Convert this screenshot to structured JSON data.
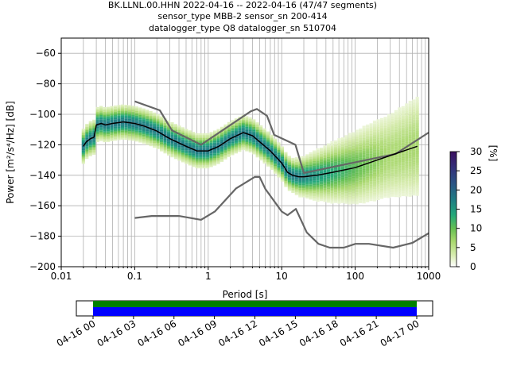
{
  "title_lines": [
    "BK.LLNL.00.HHN   2022-04-16 -- 2022-04-16  (47/47 segments)",
    "sensor_type MBB-2 sensor_sn 200-414",
    "datalogger_type Q8 datalogger_sn 510704"
  ],
  "colors": {
    "noise_model": "#666666",
    "mode_line": "#000000",
    "coverage_data": "#008000",
    "coverage_gaps": "#0000ff"
  },
  "chart_data": [
    {
      "type": "heatmap",
      "title": "BK.LLNL.00.HHN   2022-04-16 -- 2022-04-16  (47/47 segments)",
      "xlabel": "Period [s]",
      "ylabel": "Power [m²/s⁴/Hz] [dB]",
      "xscale": "log",
      "xlim": [
        0.01,
        1000
      ],
      "ylim": [
        -200,
        -50
      ],
      "xticks": [
        "0.01",
        "0.1",
        "1",
        "10",
        "100",
        "1000"
      ],
      "yticks": [
        "−200",
        "−180",
        "−160",
        "−140",
        "−120",
        "−100",
        "−80",
        "−60"
      ],
      "grid": true,
      "colorbar": {
        "label": "[%]",
        "range": [
          0,
          30
        ],
        "ticks": [
          "0",
          "5",
          "10",
          "15",
          "20",
          "25",
          "30"
        ],
        "colormap": "pqlx"
      },
      "series": [
        {
          "name": "",
          "kind": "high-noise-model",
          "x": [
            0.1,
            0.22,
            0.32,
            0.8,
            3.8,
            4.6,
            6.3,
            7.9,
            15.4,
            20,
            354.8,
            1000
          ],
          "y": [
            -91.5,
            -97.4,
            -110.5,
            -120,
            -98,
            -96.5,
            -101,
            -113.5,
            -120,
            -138.5,
            -126,
            -112
          ]
        },
        {
          "name": "",
          "kind": "low-noise-model",
          "x": [
            0.1,
            0.17,
            0.4,
            0.8,
            1.24,
            2.4,
            4.3,
            5,
            6,
            10,
            12,
            15.6,
            21.9,
            31.6,
            45,
            70,
            101,
            154,
            328,
            600,
            1000
          ],
          "y": [
            -168,
            -166.7,
            -166.7,
            -169.2,
            -163.7,
            -148.6,
            -141.1,
            -141.1,
            -149,
            -163.8,
            -166.2,
            -162.1,
            -177.5,
            -185,
            -187.5,
            -187.5,
            -185,
            -185,
            -187.5,
            -184.4,
            -178
          ]
        },
        {
          "name": "",
          "kind": "mode",
          "x": [
            0.02,
            0.022,
            0.025,
            0.028,
            0.03,
            0.035,
            0.04,
            0.05,
            0.07,
            0.1,
            0.14,
            0.2,
            0.3,
            0.5,
            0.7,
            1.0,
            1.4,
            2.0,
            3.0,
            4.0,
            5.0,
            7.0,
            10,
            12,
            14,
            17,
            20,
            30,
            50,
            100,
            200,
            400,
            700
          ],
          "y": [
            -121,
            -118,
            -116,
            -115,
            -107,
            -106,
            -107,
            -106,
            -105,
            -106,
            -108,
            -111,
            -116,
            -121,
            -124,
            -124,
            -121,
            -116,
            -112,
            -114,
            -118,
            -124,
            -132,
            -138,
            -140,
            -141,
            -141,
            -140,
            -138,
            -135,
            -130,
            -125,
            -121
          ]
        }
      ]
    },
    {
      "type": "bar",
      "title": "",
      "xlabel": "",
      "ylabel": "",
      "x_range": [
        "2022-04-16 00:00",
        "2022-04-17 00:00"
      ],
      "xticks": [
        "04-16 00",
        "04-16 03",
        "04-16 06",
        "04-16 09",
        "04-16 12",
        "04-16 15",
        "04-16 18",
        "04-16 21",
        "04-17 00"
      ],
      "series": [
        {
          "name": "",
          "kind": "data-coverage",
          "start": "04-16 00",
          "end": "04-17 00"
        },
        {
          "name": "",
          "kind": "psd-coverage",
          "start": "04-16 00",
          "end": "04-17 00"
        }
      ]
    }
  ]
}
